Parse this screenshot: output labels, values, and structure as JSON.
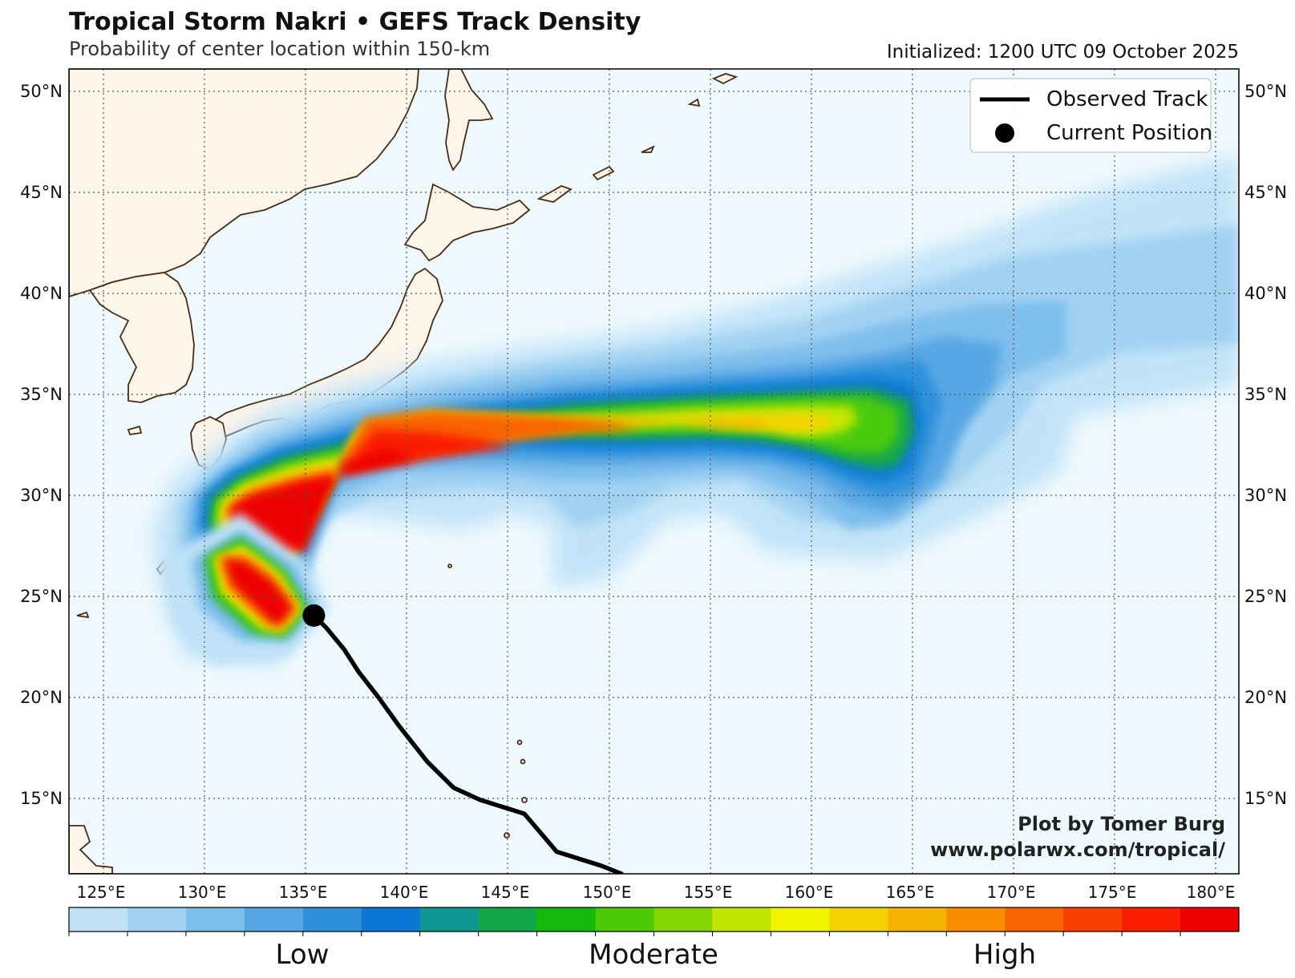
{
  "header": {
    "title": "Tropical Storm Nakri • GEFS Track Density",
    "subtitle": "Probability of center location within 150-km",
    "initialized": "Initialized: 1200 UTC 09 October 2025"
  },
  "map": {
    "lat_ticks": [
      "50°N",
      "45°N",
      "40°N",
      "35°N",
      "30°N",
      "25°N",
      "20°N",
      "15°N"
    ],
    "lon_ticks": [
      "125°E",
      "130°E",
      "135°E",
      "140°E",
      "145°E",
      "150°E",
      "155°E",
      "160°E",
      "165°E",
      "170°E",
      "175°E",
      "180°E"
    ],
    "extent": {
      "lon": [
        122.2,
        180
      ],
      "lat": [
        11.8,
        52
      ]
    },
    "ocean_color": "#eef9fd",
    "land_color": "#fbf5ea",
    "coast_color": "#4a2a12"
  },
  "legend": {
    "observed_track": "Observed Track",
    "current_position": "Current Position"
  },
  "credit": {
    "line1": "Plot by Tomer Burg",
    "line2": "www.polarwx.com/tropical/"
  },
  "colorbar": {
    "colors": [
      "#bfe2f8",
      "#a1d2f2",
      "#7dbdec",
      "#56a6e4",
      "#2f91dc",
      "#0a78d4",
      "#0f9792",
      "#12a84a",
      "#15b90c",
      "#4ccb08",
      "#86d606",
      "#c2e604",
      "#f3f400",
      "#f5d300",
      "#f6b200",
      "#f78c00",
      "#f86400",
      "#fa4000",
      "#fb1d00",
      "#ee0000"
    ],
    "labels": [
      "Low",
      "Moderate",
      "High"
    ]
  },
  "observed_track": [
    {
      "lon": 149.5,
      "lat": 11.8
    },
    {
      "lon": 148.5,
      "lat": 12.2
    },
    {
      "lon": 146.3,
      "lat": 12.9
    },
    {
      "lon": 144.7,
      "lat": 14.8
    },
    {
      "lon": 142.5,
      "lat": 15.5
    },
    {
      "lon": 141.2,
      "lat": 16.1
    },
    {
      "lon": 139.9,
      "lat": 17.4
    },
    {
      "lon": 138.5,
      "lat": 19.2
    },
    {
      "lon": 137.5,
      "lat": 20.6
    },
    {
      "lon": 136.5,
      "lat": 21.9
    },
    {
      "lon": 135.8,
      "lat": 23.0
    },
    {
      "lon": 134.9,
      "lat": 24.1
    },
    {
      "lon": 134.3,
      "lat": 24.7
    }
  ],
  "current_position": {
    "lon": 134.3,
    "lat": 24.7
  }
}
